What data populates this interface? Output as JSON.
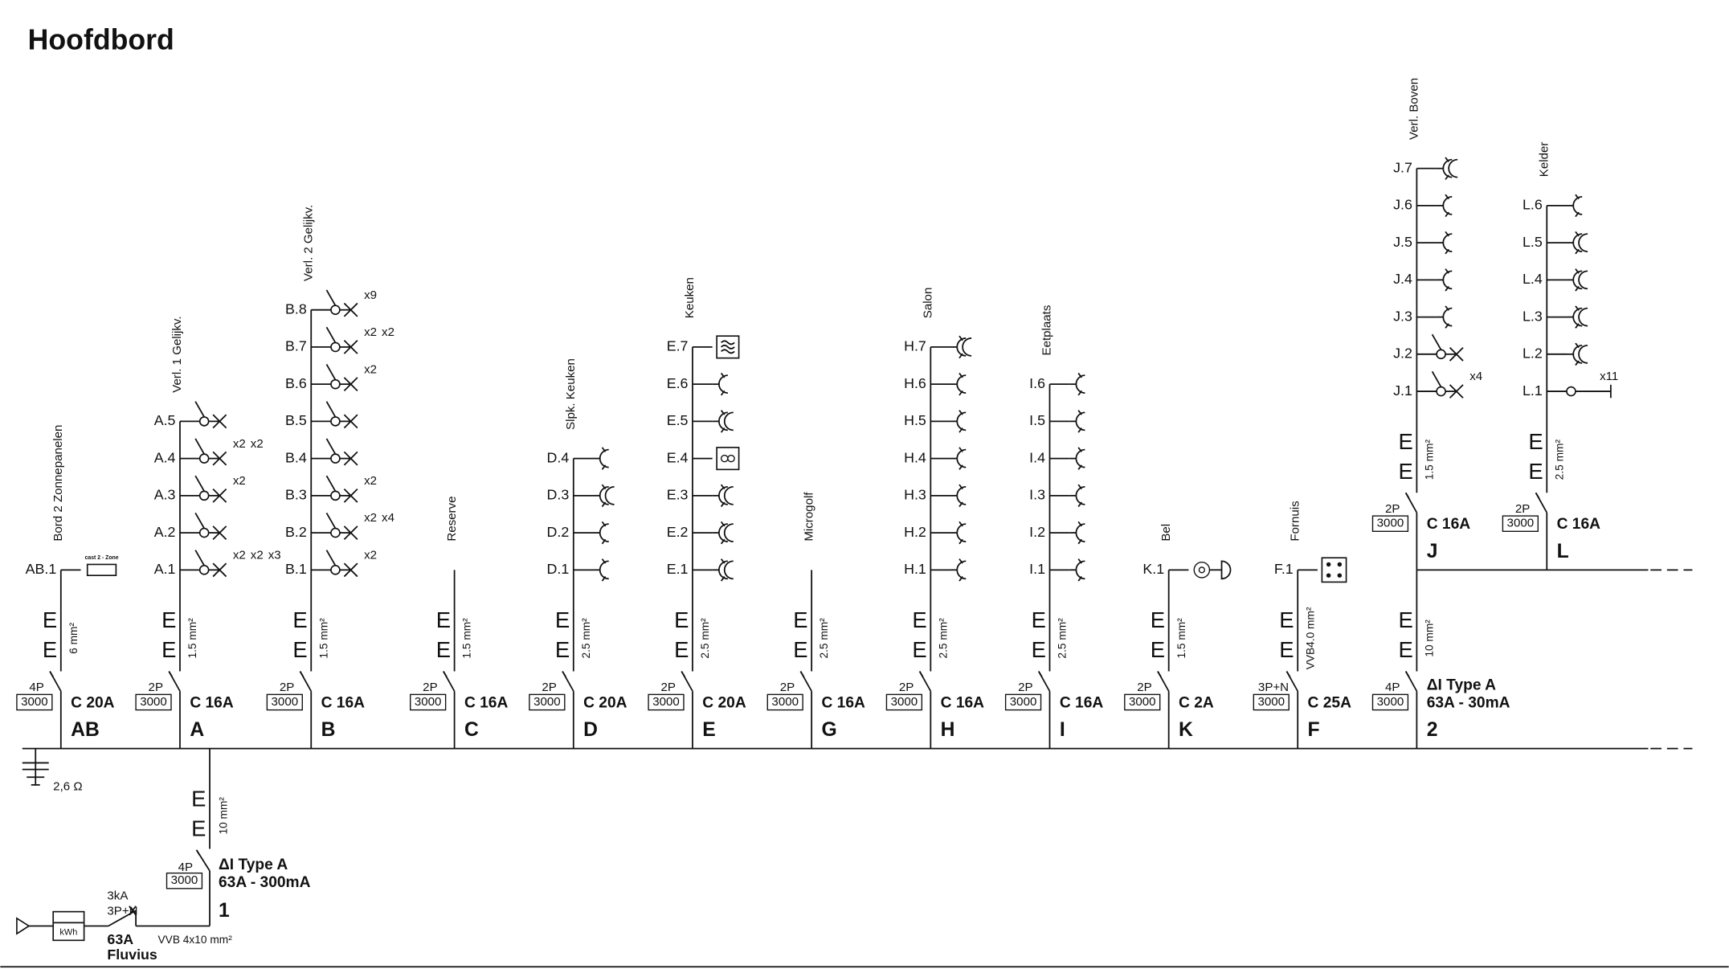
{
  "title": "Hoofdbord",
  "circuits": [
    {
      "id": "AB",
      "label": "Bord 2 Zonnepanelen",
      "cable": "6 mm²",
      "earth": [
        "E",
        "E"
      ],
      "poles": "4P",
      "capacity": "3000",
      "breaker": "C 20A",
      "points": [
        {
          "id": "AB.1",
          "symbol": "inverter",
          "notes": [
            "cast 2 - Zone"
          ]
        }
      ]
    },
    {
      "id": "A",
      "label": "Verl. 1 Gelijkv.",
      "cable": "1.5 mm²",
      "earth": [
        "E",
        "E"
      ],
      "poles": "2P",
      "capacity": "3000",
      "breaker": "C 16A",
      "points": [
        {
          "id": "A.1",
          "symbol": "light-switch",
          "notes": [
            "x2",
            "x2",
            "x3"
          ]
        },
        {
          "id": "A.2",
          "symbol": "light-switch",
          "notes": []
        },
        {
          "id": "A.3",
          "symbol": "light-switch",
          "notes": [
            "x2"
          ]
        },
        {
          "id": "A.4",
          "symbol": "light-switch",
          "notes": [
            "x2",
            "x2"
          ]
        },
        {
          "id": "A.5",
          "symbol": "light-switch",
          "notes": []
        }
      ]
    },
    {
      "id": "B",
      "label": "Verl. 2 Gelijkv.",
      "cable": "1.5 mm²",
      "earth": [
        "E",
        "E"
      ],
      "poles": "2P",
      "capacity": "3000",
      "breaker": "C 16A",
      "points": [
        {
          "id": "B.1",
          "symbol": "light-switch",
          "notes": [
            "x2"
          ]
        },
        {
          "id": "B.2",
          "symbol": "light-switch",
          "notes": [
            "x2",
            "x4"
          ]
        },
        {
          "id": "B.3",
          "symbol": "light-switch",
          "notes": [
            "x2"
          ]
        },
        {
          "id": "B.4",
          "symbol": "light-switch",
          "notes": []
        },
        {
          "id": "B.5",
          "symbol": "light-switch",
          "notes": []
        },
        {
          "id": "B.6",
          "symbol": "light-switch",
          "notes": [
            "x2"
          ]
        },
        {
          "id": "B.7",
          "symbol": "light-switch",
          "notes": [
            "x2",
            "x2"
          ]
        },
        {
          "id": "B.8",
          "symbol": "light-switch",
          "notes": [
            "x9"
          ]
        }
      ]
    },
    {
      "id": "C",
      "label": "Reserve",
      "cable": "1.5 mm²",
      "earth": [
        "E",
        "E"
      ],
      "poles": "2P",
      "capacity": "3000",
      "breaker": "C 16A",
      "points": []
    },
    {
      "id": "D",
      "label": "Slpk. Keuken",
      "cable": "2.5 mm²",
      "earth": [
        "E",
        "E"
      ],
      "poles": "2P",
      "capacity": "3000",
      "breaker": "C 20A",
      "points": [
        {
          "id": "D.1",
          "symbol": "socket",
          "notes": []
        },
        {
          "id": "D.2",
          "symbol": "socket",
          "notes": []
        },
        {
          "id": "D.3",
          "symbol": "socket-double",
          "notes": []
        },
        {
          "id": "D.4",
          "symbol": "socket",
          "notes": []
        }
      ]
    },
    {
      "id": "E",
      "label": "Keuken",
      "cable": "2.5 mm²",
      "earth": [
        "E",
        "E"
      ],
      "poles": "2P",
      "capacity": "3000",
      "breaker": "C 20A",
      "points": [
        {
          "id": "E.1",
          "symbol": "socket-double",
          "notes": []
        },
        {
          "id": "E.2",
          "symbol": "socket-double",
          "notes": []
        },
        {
          "id": "E.3",
          "symbol": "socket-double",
          "notes": []
        },
        {
          "id": "E.4",
          "symbol": "washer",
          "notes": []
        },
        {
          "id": "E.5",
          "symbol": "socket-double",
          "notes": []
        },
        {
          "id": "E.6",
          "symbol": "socket",
          "notes": []
        },
        {
          "id": "E.7",
          "symbol": "dryer",
          "notes": []
        }
      ]
    },
    {
      "id": "G",
      "label": "Microgolf",
      "cable": "2.5 mm²",
      "earth": [
        "E",
        "E"
      ],
      "poles": "2P",
      "capacity": "3000",
      "breaker": "C 16A",
      "points": []
    },
    {
      "id": "H",
      "label": "Salon",
      "cable": "2.5 mm²",
      "earth": [
        "E",
        "E"
      ],
      "poles": "2P",
      "capacity": "3000",
      "breaker": "C 16A",
      "points": [
        {
          "id": "H.1",
          "symbol": "socket",
          "notes": []
        },
        {
          "id": "H.2",
          "symbol": "socket",
          "notes": []
        },
        {
          "id": "H.3",
          "symbol": "socket",
          "notes": []
        },
        {
          "id": "H.4",
          "symbol": "socket",
          "notes": []
        },
        {
          "id": "H.5",
          "symbol": "socket",
          "notes": []
        },
        {
          "id": "H.6",
          "symbol": "socket",
          "notes": []
        },
        {
          "id": "H.7",
          "symbol": "socket-double",
          "notes": []
        }
      ]
    },
    {
      "id": "I",
      "label": "Eetplaats",
      "cable": "2.5 mm²",
      "earth": [
        "E",
        "E"
      ],
      "poles": "2P",
      "capacity": "3000",
      "breaker": "C 16A",
      "points": [
        {
          "id": "I.1",
          "symbol": "socket",
          "notes": []
        },
        {
          "id": "I.2",
          "symbol": "socket",
          "notes": []
        },
        {
          "id": "I.3",
          "symbol": "socket",
          "notes": []
        },
        {
          "id": "I.4",
          "symbol": "socket",
          "notes": []
        },
        {
          "id": "I.5",
          "symbol": "socket",
          "notes": []
        },
        {
          "id": "I.6",
          "symbol": "socket",
          "notes": []
        }
      ]
    },
    {
      "id": "K",
      "label": "Bel",
      "cable": "1.5 mm²",
      "earth": [
        "E",
        "E"
      ],
      "poles": "2P",
      "capacity": "3000",
      "breaker": "C 2A",
      "points": [
        {
          "id": "K.1",
          "symbol": "bell",
          "notes": []
        }
      ]
    },
    {
      "id": "F",
      "label": "Fornuis",
      "cable": "VVB4.0 mm²",
      "earth": [
        "E",
        "E"
      ],
      "poles": "3P+N",
      "capacity": "3000",
      "breaker": "C 25A",
      "points": [
        {
          "id": "F.1",
          "symbol": "cooker",
          "notes": []
        }
      ]
    },
    {
      "id": "2",
      "cable": "10 mm²",
      "earth": [
        "E",
        "E"
      ],
      "poles": "4P",
      "capacity": "3000",
      "breaker": [
        "ΔI Type A",
        "63A - 30mA"
      ],
      "points": [],
      "subcircuits": [
        {
          "id": "J",
          "label": "Verl. Boven",
          "cable": "1.5 mm²",
          "earth": [
            "E",
            "E"
          ],
          "poles": "2P",
          "capacity": "3000",
          "breaker": "C 16A",
          "points": [
            {
              "id": "J.1",
              "symbol": "light-switch",
              "notes": [
                "x4"
              ]
            },
            {
              "id": "J.2",
              "symbol": "light-switch",
              "notes": []
            },
            {
              "id": "J.3",
              "symbol": "socket",
              "notes": []
            },
            {
              "id": "J.4",
              "symbol": "socket",
              "notes": []
            },
            {
              "id": "J.5",
              "symbol": "socket",
              "notes": []
            },
            {
              "id": "J.6",
              "symbol": "socket",
              "notes": []
            },
            {
              "id": "J.7",
              "symbol": "socket-double",
              "notes": []
            }
          ]
        },
        {
          "id": "L",
          "label": "Kelder",
          "cable": "2.5 mm²",
          "earth": [
            "E",
            "E"
          ],
          "poles": "2P",
          "capacity": "3000",
          "breaker": "C 16A",
          "points": [
            {
              "id": "L.1",
              "symbol": "wall-light",
              "notes": [
                "x11"
              ]
            },
            {
              "id": "L.2",
              "symbol": "socket-double",
              "notes": []
            },
            {
              "id": "L.3",
              "symbol": "socket-double",
              "notes": []
            },
            {
              "id": "L.4",
              "symbol": "socket-double",
              "notes": []
            },
            {
              "id": "L.5",
              "symbol": "socket-double",
              "notes": []
            },
            {
              "id": "L.6",
              "symbol": "socket",
              "notes": []
            }
          ]
        }
      ]
    }
  ],
  "earth_resistance": "2,6 Ω",
  "main": {
    "id": "1",
    "cable": "10 mm²",
    "earth": [
      "E",
      "E"
    ],
    "poles": "4P",
    "capacity": "3000",
    "breaker": [
      "ΔI Type A",
      "63A - 300mA"
    ]
  },
  "meter": {
    "label": "kWh",
    "capacity": "3kA",
    "poles": "3P+N",
    "rating": "63A",
    "supplier": "Fluvius",
    "cable": "VVB 4x10 mm²"
  }
}
